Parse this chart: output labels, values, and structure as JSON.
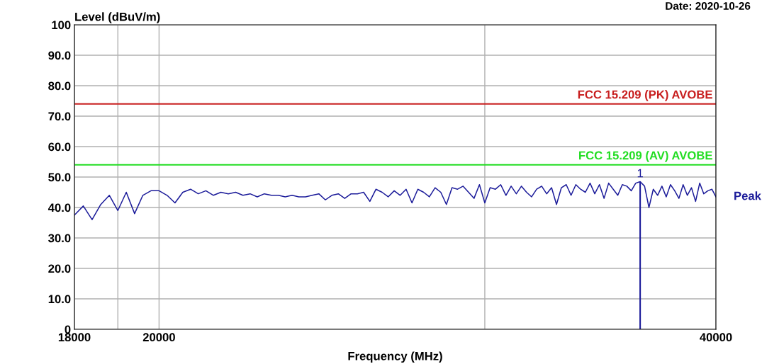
{
  "chart_data": {
    "type": "line",
    "xlabel": "Frequency (MHz)",
    "ylabel": "Level (dBuV/m)",
    "log": "x",
    "grid": true,
    "legend": false,
    "marker": "none",
    "line_style": "solid",
    "xlim": [
      18000,
      40000
    ],
    "xticks": [
      18000,
      {
        "value": 19000,
        "label": null
      },
      20000,
      {
        "value": 30000,
        "label": null
      },
      40000
    ],
    "ylim": [
      0,
      100
    ],
    "yticks": [
      0,
      {
        "value": 10,
        "label": "10.0"
      },
      {
        "value": 20,
        "label": "20.0"
      },
      {
        "value": 30,
        "label": "30.0"
      },
      {
        "value": 40,
        "label": "40.0"
      },
      {
        "value": 50,
        "label": "50.0"
      },
      {
        "value": 60,
        "label": "60.0"
      },
      {
        "value": 70,
        "label": "70.0"
      },
      {
        "value": 80,
        "label": "80.0"
      },
      {
        "value": 90,
        "label": "90.0"
      },
      100
    ],
    "x": [
      18000,
      18200,
      18400,
      18600,
      18800,
      19000,
      19200,
      19400,
      19600,
      19800,
      20000,
      20200,
      20400,
      20600,
      20800,
      21000,
      21200,
      21400,
      21600,
      21800,
      22000,
      22200,
      22400,
      22600,
      22800,
      23000,
      23200,
      23400,
      23600,
      23800,
      24000,
      24200,
      24400,
      24600,
      24800,
      25000,
      25200,
      25400,
      25600,
      25800,
      26000,
      26200,
      26400,
      26600,
      26800,
      27000,
      27200,
      27400,
      27600,
      27800,
      28000,
      28200,
      28400,
      28600,
      28800,
      29000,
      29200,
      29400,
      29600,
      29800,
      30000,
      30200,
      30400,
      30600,
      30800,
      31000,
      31200,
      31400,
      31600,
      31800,
      32000,
      32200,
      32400,
      32600,
      32800,
      33000,
      33200,
      33400,
      33600,
      33800,
      34000,
      34200,
      34400,
      34600,
      34800,
      35000,
      35200,
      35400,
      35600,
      35800,
      36000,
      36200,
      36400,
      36600,
      36800,
      37000,
      37200,
      37400,
      37600,
      37800,
      38000,
      38200,
      38400,
      38600,
      38800,
      39000,
      39200,
      39400,
      39600,
      39800,
      40000
    ],
    "series": [
      {
        "name": "Peak",
        "color": "#1c1c9a",
        "values": [
          37.5,
          40.5,
          36,
          41,
          44,
          39,
          45,
          38,
          44,
          45.5,
          45.5,
          44,
          41.5,
          45,
          46,
          44.5,
          45.5,
          44,
          45,
          44.5,
          45,
          44,
          44.5,
          43.5,
          44.5,
          44,
          44,
          43.5,
          44,
          43.5,
          43.5,
          44,
          44.5,
          42.5,
          44,
          44.5,
          43,
          44.5,
          44.5,
          45,
          42,
          46,
          45,
          43.5,
          45.5,
          44,
          46,
          41.5,
          46,
          45,
          43.5,
          46.5,
          45,
          41,
          46.5,
          46,
          47,
          45,
          43,
          47.5,
          41.5,
          46.5,
          46,
          47.5,
          44,
          47,
          44.5,
          47,
          45,
          43.5,
          46,
          47,
          44.5,
          46.5,
          41,
          46.5,
          47.5,
          44,
          47.5,
          46,
          45,
          48,
          44.5,
          47.5,
          43,
          48,
          46,
          44,
          47.5,
          47,
          45.5,
          48,
          48.5,
          47,
          40,
          46,
          44,
          47,
          43.5,
          47.5,
          45.5,
          43,
          47.5,
          44,
          46.5,
          42,
          48,
          44.5,
          45.5,
          46,
          43.5
        ]
      }
    ],
    "ref_lines": [
      {
        "axis": "y",
        "value": 74,
        "label": "FCC 15.209 (PK) AVOBE",
        "color": "#c81e1e",
        "line_style": "solid"
      },
      {
        "axis": "y",
        "value": 54,
        "label": "FCC 15.209 (AV) AVOBE",
        "color": "#22dd22",
        "line_style": "solid"
      }
    ],
    "annotations": [
      "Date: 2020-10-26",
      {
        "text": "1",
        "x": 36400,
        "y": 48.5
      }
    ]
  }
}
